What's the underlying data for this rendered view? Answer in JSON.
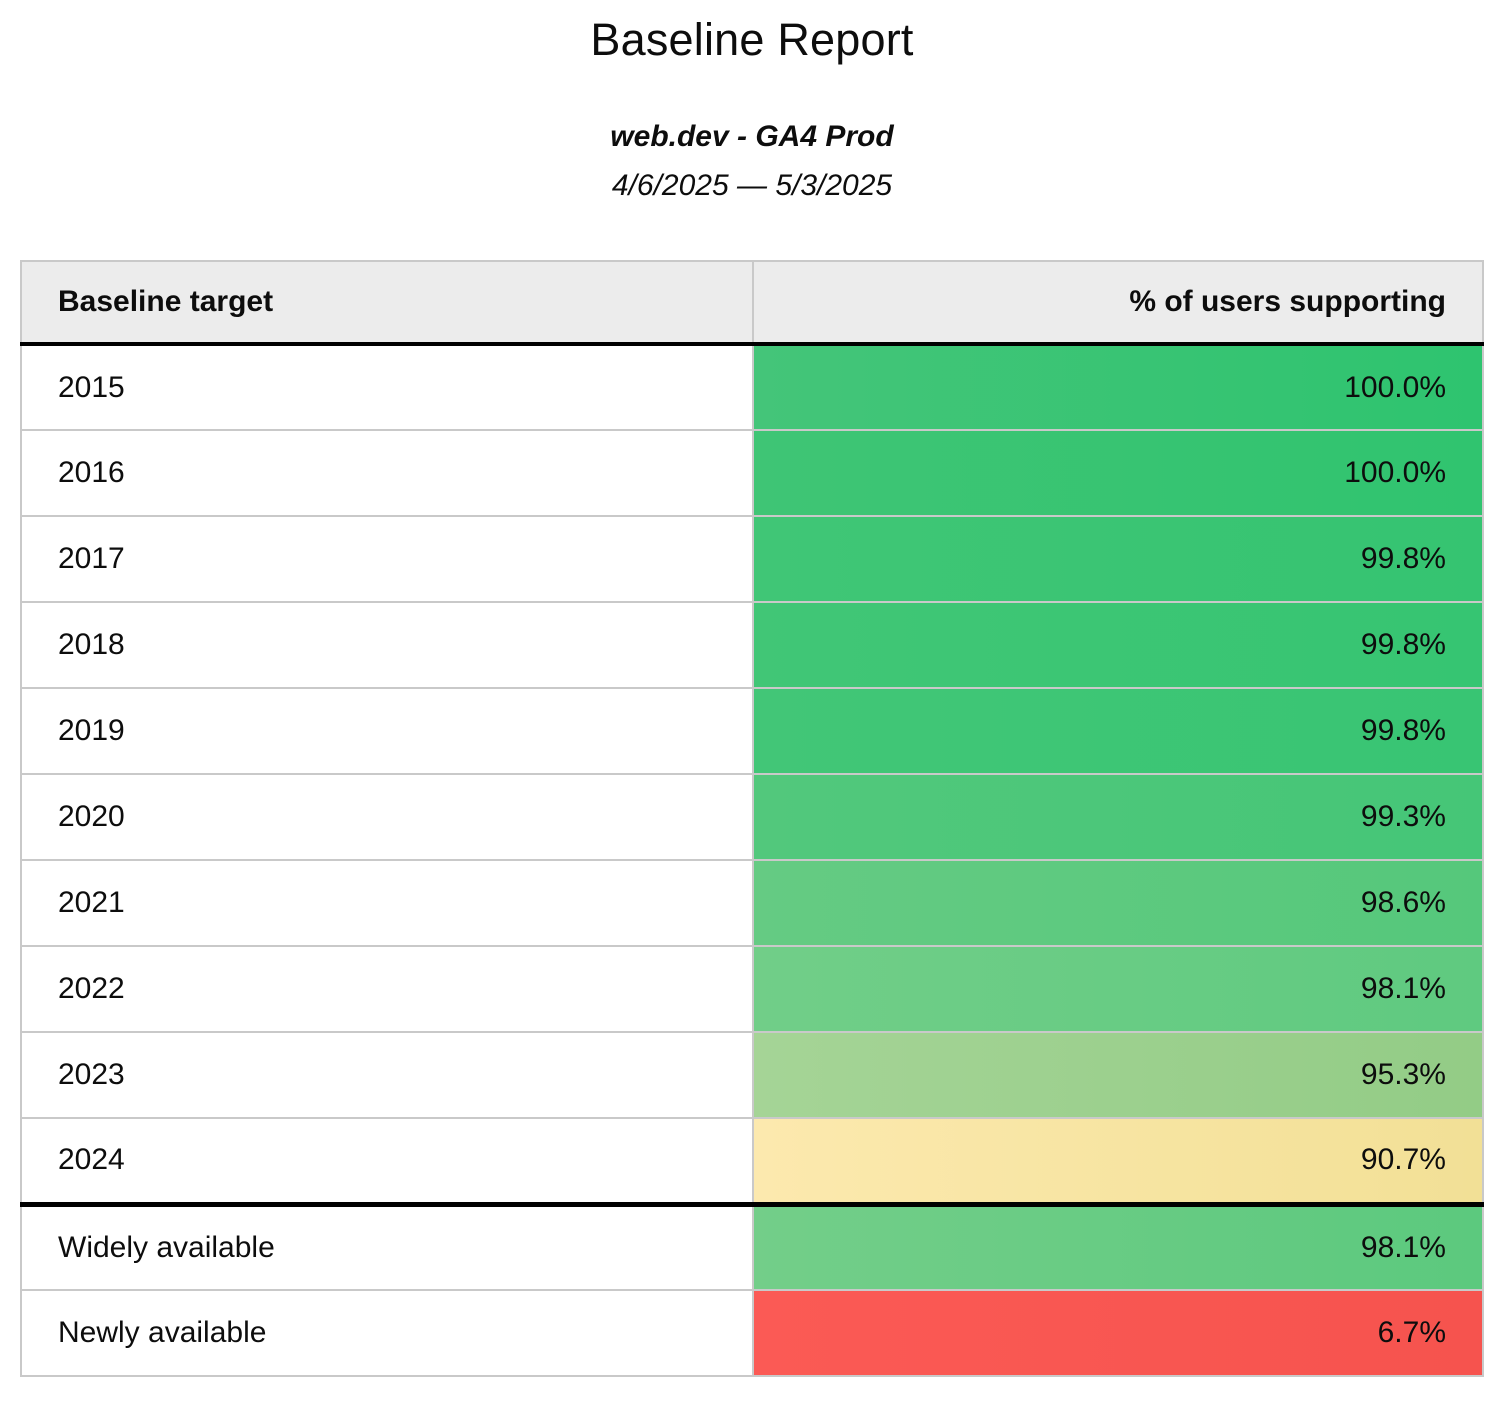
{
  "header": {
    "title": "Baseline Report",
    "property": "web.dev - GA4 Prod",
    "date_range": "4/6/2025 — 5/3/2025"
  },
  "table": {
    "columns": [
      "Baseline target",
      "% of users supporting"
    ],
    "rows": [
      {
        "target": "2015",
        "percent": "100.0%",
        "color_start": "#44c579",
        "color_end": "#2ec46f",
        "section_start": false
      },
      {
        "target": "2016",
        "percent": "100.0%",
        "color_start": "#3fc575",
        "color_end": "#30c46f",
        "section_start": false
      },
      {
        "target": "2017",
        "percent": "99.8%",
        "color_start": "#40c676",
        "color_end": "#35c471",
        "section_start": false
      },
      {
        "target": "2018",
        "percent": "99.8%",
        "color_start": "#41c676",
        "color_end": "#36c572",
        "section_start": false
      },
      {
        "target": "2019",
        "percent": "99.8%",
        "color_start": "#42c677",
        "color_end": "#38c573",
        "section_start": false
      },
      {
        "target": "2020",
        "percent": "99.3%",
        "color_start": "#52c87c",
        "color_end": "#45c677",
        "section_start": false
      },
      {
        "target": "2021",
        "percent": "98.6%",
        "color_start": "#65cb83",
        "color_end": "#55c87b",
        "section_start": false
      },
      {
        "target": "2022",
        "percent": "98.1%",
        "color_start": "#71ce88",
        "color_end": "#5fca80",
        "section_start": false
      },
      {
        "target": "2023",
        "percent": "95.3%",
        "color_start": "#a5d496",
        "color_end": "#93cc86",
        "section_start": false
      },
      {
        "target": "2024",
        "percent": "90.7%",
        "color_start": "#fce9ae",
        "color_end": "#f2e096",
        "section_start": false
      },
      {
        "target": "Widely available",
        "percent": "98.1%",
        "color_start": "#73ce89",
        "color_end": "#5cc97e",
        "section_start": true
      },
      {
        "target": "Newly available",
        "percent": "6.7%",
        "color_start": "#fb5a55",
        "color_end": "#f6534e",
        "section_start": false
      }
    ]
  },
  "chart_data": {
    "type": "table",
    "title": "Baseline Report",
    "subtitle": "web.dev - GA4 Prod",
    "date_range": "4/6/2025 — 5/3/2025",
    "columns": [
      "Baseline target",
      "% of users supporting"
    ],
    "categories": [
      "2015",
      "2016",
      "2017",
      "2018",
      "2019",
      "2020",
      "2021",
      "2022",
      "2023",
      "2024",
      "Widely available",
      "Newly available"
    ],
    "values": [
      100.0,
      100.0,
      99.8,
      99.8,
      99.8,
      99.3,
      98.6,
      98.1,
      95.3,
      90.7,
      98.1,
      6.7
    ],
    "value_unit": "%",
    "layout_hints": {
      "heatmap": "percent column cells colored green (high) through yellow (~90%) to red (low)",
      "sections": "year rows 2015-2024, then thick divider, then Widely/Newly available rows",
      "value_alignment": "right"
    }
  }
}
